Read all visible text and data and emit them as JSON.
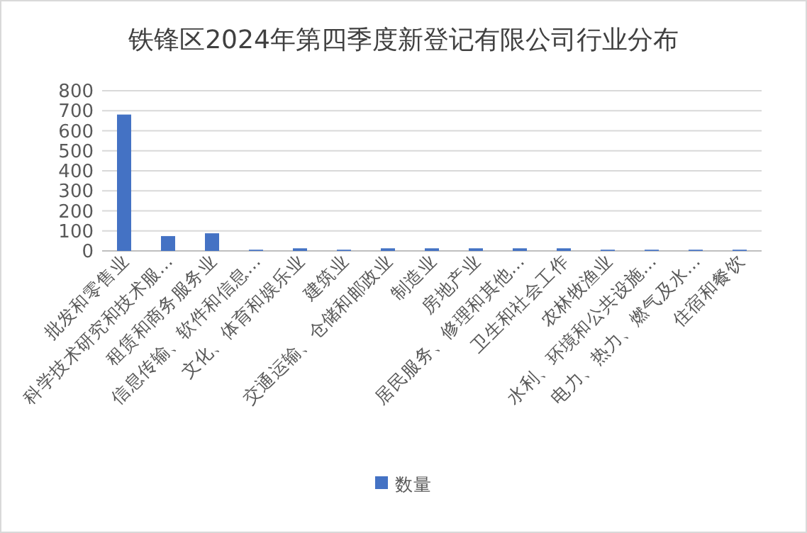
{
  "chart_data": {
    "type": "bar",
    "title": "铁锋区2024年第四季度新登记有限公司行业分布",
    "categories": [
      "批发和零售业",
      "科学技术研究和技术服…",
      "租赁和商务服务业",
      "信息传输、软件和信息…",
      "文化、体育和娱乐业",
      "建筑业",
      "交通运输、仓储和邮政业",
      "制造业",
      "房地产业",
      "居民服务、修理和其他…",
      "卫生和社会工作",
      "农林牧渔业",
      "水利、环境和公共设施…",
      "电力、热力、燃气及水…",
      "住宿和餐饮"
    ],
    "series": [
      {
        "name": "数量",
        "color": "#4472c4",
        "values": [
          681,
          74,
          88,
          6,
          13,
          6,
          13,
          13,
          13,
          13,
          13,
          6,
          6,
          6,
          6
        ]
      }
    ],
    "ylim": [
      0,
      800
    ],
    "yticks": [
      0,
      100,
      200,
      300,
      400,
      500,
      600,
      700,
      800
    ],
    "grid": "y",
    "legend": "bottom"
  }
}
